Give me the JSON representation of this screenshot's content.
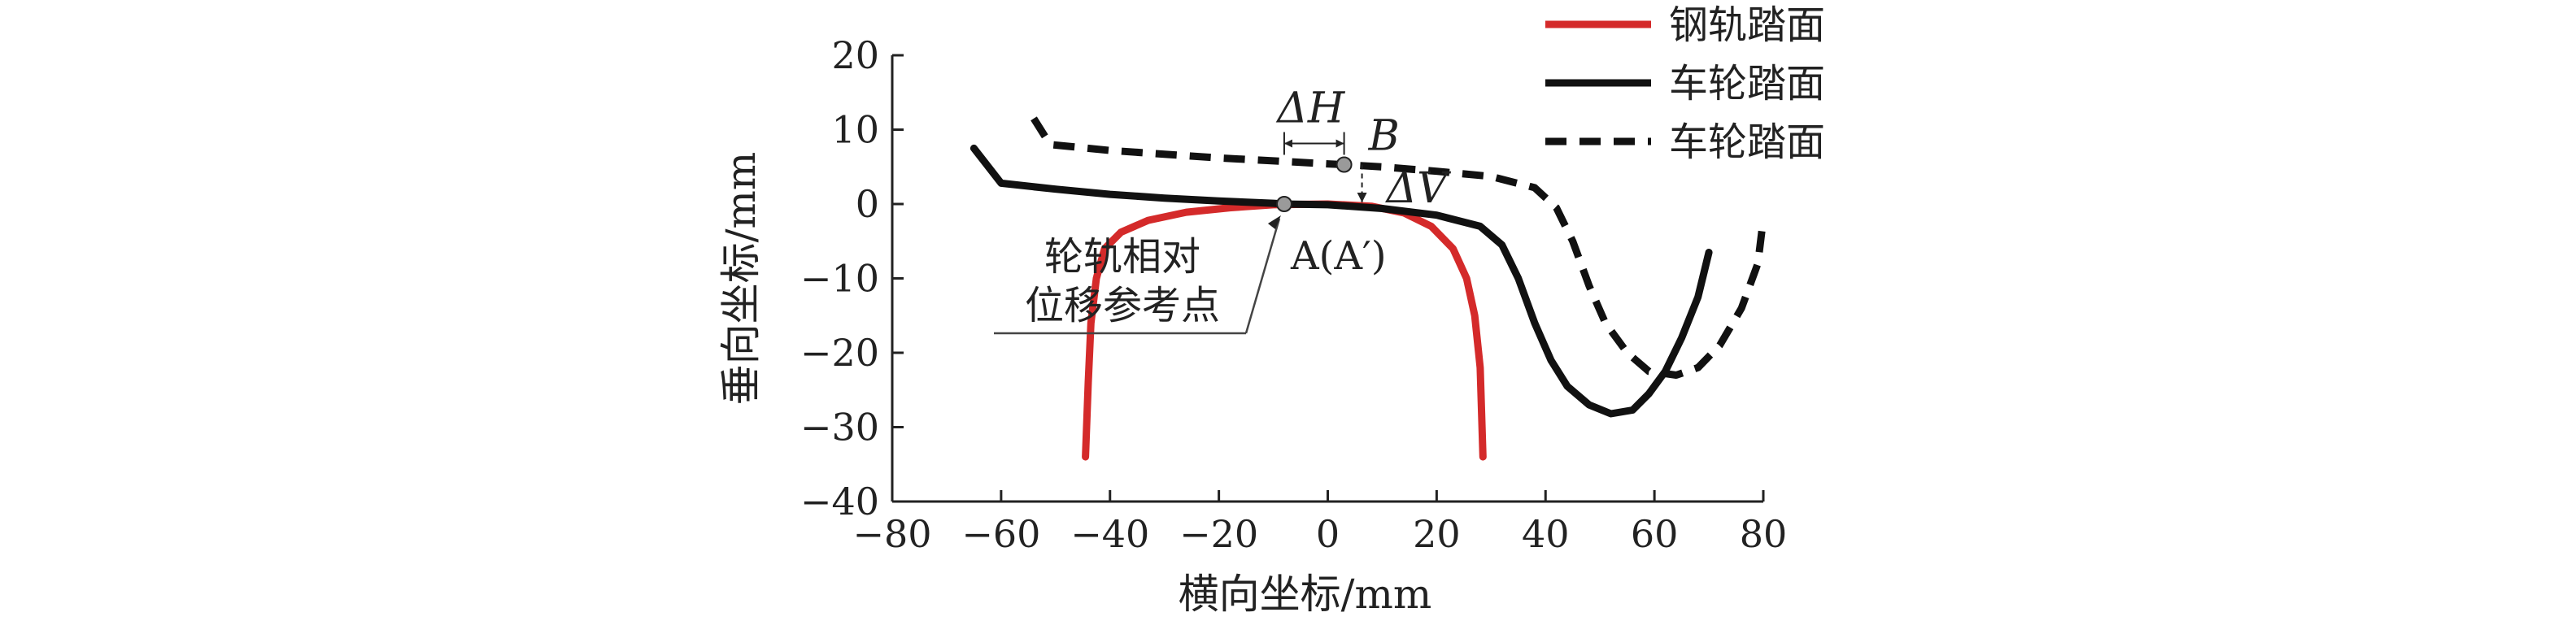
{
  "chart_data": {
    "type": "line",
    "xlabel": "横向坐标/mm",
    "ylabel": "垂向坐标/mm",
    "xlim": [
      -80,
      80
    ],
    "ylim": [
      -40,
      20
    ],
    "xticks": [
      "−80",
      "−60",
      "−40",
      "−20",
      "0",
      "20",
      "40",
      "60",
      "80"
    ],
    "yticks": [
      "20",
      "10",
      "0",
      "−10",
      "−20",
      "−30",
      "−40"
    ],
    "legend_position": "top-right",
    "series": [
      {
        "name": "钢轨踏面",
        "color": "#d42a2a",
        "style": "solid",
        "points": [
          [
            -44.5,
            -34
          ],
          [
            -44,
            -24
          ],
          [
            -43.5,
            -16
          ],
          [
            -42.5,
            -10
          ],
          [
            -41,
            -6
          ],
          [
            -38,
            -3.8
          ],
          [
            -33,
            -2.2
          ],
          [
            -26,
            -1.1
          ],
          [
            -18,
            -0.5
          ],
          [
            -10,
            -0.1
          ],
          [
            0,
            0
          ],
          [
            8,
            -0.3
          ],
          [
            14,
            -1.2
          ],
          [
            19,
            -3
          ],
          [
            23,
            -6
          ],
          [
            25.5,
            -10
          ],
          [
            27,
            -15
          ],
          [
            28,
            -22
          ],
          [
            28.5,
            -34
          ]
        ]
      },
      {
        "name": "车轮踏面",
        "color": "#111111",
        "style": "solid",
        "points": [
          [
            -65,
            7.5
          ],
          [
            -60,
            2.8
          ],
          [
            -50,
            2
          ],
          [
            -40,
            1.3
          ],
          [
            -30,
            0.8
          ],
          [
            -20,
            0.4
          ],
          [
            -10,
            0.1
          ],
          [
            -8,
            0
          ],
          [
            0,
            -0.1
          ],
          [
            10,
            -0.6
          ],
          [
            20,
            -1.5
          ],
          [
            28,
            -3
          ],
          [
            32,
            -5.5
          ],
          [
            35,
            -10
          ],
          [
            38,
            -16
          ],
          [
            41,
            -21
          ],
          [
            44,
            -24.5
          ],
          [
            48,
            -27
          ],
          [
            52,
            -28.2
          ],
          [
            56,
            -27.7
          ],
          [
            59,
            -25.5
          ],
          [
            62,
            -22.5
          ],
          [
            65,
            -18
          ],
          [
            68,
            -12.5
          ],
          [
            70,
            -6.5
          ]
        ]
      },
      {
        "name": "车轮踏面",
        "color": "#111111",
        "style": "dashed",
        "points": [
          [
            -54,
            11.5
          ],
          [
            -51,
            8
          ],
          [
            -40,
            7.2
          ],
          [
            -30,
            6.7
          ],
          [
            -20,
            6.2
          ],
          [
            -10,
            5.8
          ],
          [
            0,
            5.4
          ],
          [
            3,
            5.3
          ],
          [
            10,
            5
          ],
          [
            20,
            4.4
          ],
          [
            30,
            3.7
          ],
          [
            38,
            2.2
          ],
          [
            42,
            -0.5
          ],
          [
            45,
            -5
          ],
          [
            48,
            -11
          ],
          [
            51,
            -16
          ],
          [
            55,
            -20
          ],
          [
            59,
            -22.5
          ],
          [
            64,
            -23
          ],
          [
            68,
            -22
          ],
          [
            72,
            -19
          ],
          [
            76,
            -14
          ],
          [
            79,
            -8
          ],
          [
            80,
            -2
          ]
        ]
      }
    ],
    "annotations": {
      "point_a_label": "A(A′)",
      "point_b_label": "B",
      "delta_h_label": "ΔH",
      "delta_v_label": "ΔV",
      "reference_line1": "轮轨相对",
      "reference_line2": "位移参考点",
      "point_a": [
        -8,
        0
      ],
      "point_b": [
        3,
        5.3
      ]
    }
  }
}
